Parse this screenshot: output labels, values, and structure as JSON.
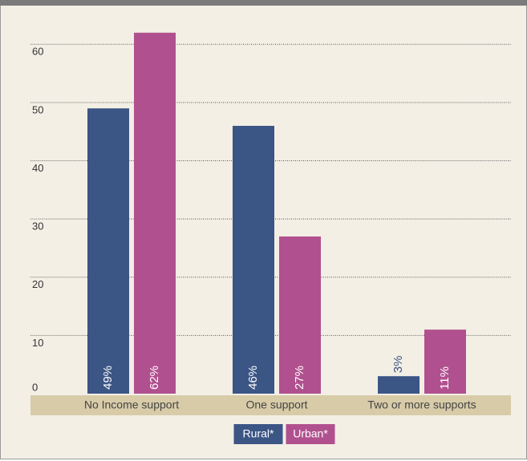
{
  "chart_data": {
    "type": "bar",
    "categories": [
      "No Income support",
      "One support",
      "Two or more supports"
    ],
    "series": [
      {
        "name": "Rural*",
        "color": "#3b5585",
        "values": [
          49,
          46,
          3
        ],
        "value_labels": [
          "49%",
          "46%",
          "3%"
        ]
      },
      {
        "name": "Urban*",
        "color": "#b1508f",
        "values": [
          62,
          27,
          11
        ],
        "value_labels": [
          "62%",
          "27%",
          "11%"
        ]
      }
    ],
    "ylim": [
      0,
      65
    ],
    "yticks": [
      0,
      10,
      20,
      30,
      40,
      50,
      60
    ],
    "grid": true,
    "legend": "bottom"
  }
}
